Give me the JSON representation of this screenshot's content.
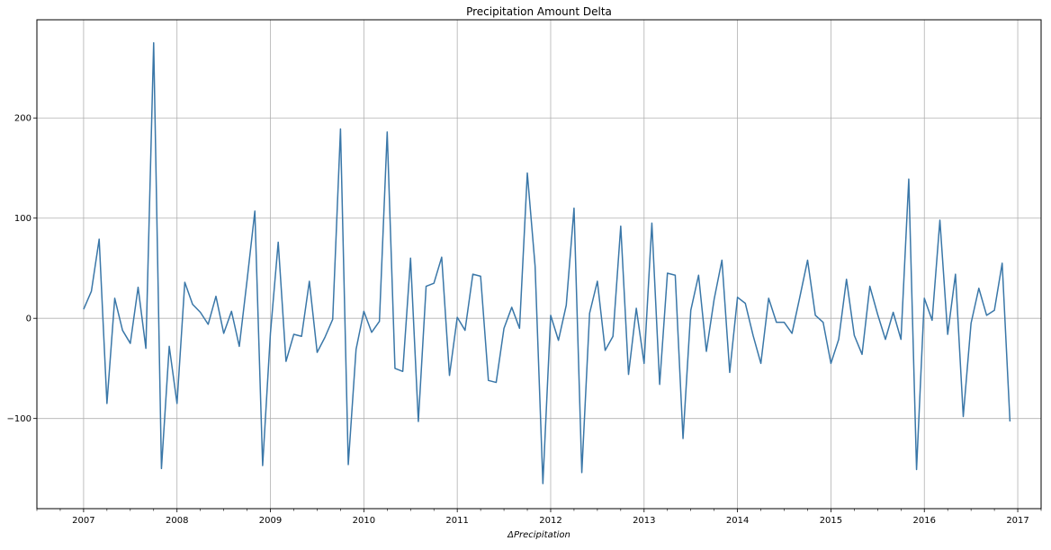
{
  "chart_data": {
    "type": "line",
    "title": "Precipitation Amount Delta",
    "xlabel": "ΔPrecipitation",
    "ylabel": "",
    "grid": true,
    "legend": "none",
    "line_color": "#3a77a8",
    "x_ticks": [
      "2007",
      "2008",
      "2009",
      "2010",
      "2011",
      "2012",
      "2013",
      "2014",
      "2015",
      "2016",
      "2017"
    ],
    "y_ticks": [
      -100,
      0,
      100,
      200
    ],
    "xlim": [
      "2006-07",
      "2017-04"
    ],
    "ylim": [
      -190,
      298
    ],
    "series": [
      {
        "x": [
          "2007-01",
          "2007-02",
          "2007-03",
          "2007-04",
          "2007-05",
          "2007-06",
          "2007-07",
          "2007-08",
          "2007-09",
          "2007-10",
          "2007-11",
          "2007-12",
          "2008-01",
          "2008-02",
          "2008-03",
          "2008-04",
          "2008-05",
          "2008-06",
          "2008-07",
          "2008-08",
          "2008-09",
          "2008-10",
          "2008-11",
          "2008-12",
          "2009-01",
          "2009-02",
          "2009-03",
          "2009-04",
          "2009-05",
          "2009-06",
          "2009-07",
          "2009-08",
          "2009-09",
          "2009-10",
          "2009-11",
          "2009-12",
          "2010-01",
          "2010-02",
          "2010-03",
          "2010-04",
          "2010-05",
          "2010-06",
          "2010-07",
          "2010-08",
          "2010-09",
          "2010-10",
          "2010-11",
          "2010-12",
          "2011-01",
          "2011-02",
          "2011-03",
          "2011-04",
          "2011-05",
          "2011-06",
          "2011-07",
          "2011-08",
          "2011-09",
          "2011-10",
          "2011-11",
          "2011-12",
          "2012-01",
          "2012-02",
          "2012-03",
          "2012-04",
          "2012-05",
          "2012-06",
          "2012-07",
          "2012-08",
          "2012-09",
          "2012-10",
          "2012-11",
          "2012-12",
          "2013-01",
          "2013-02",
          "2013-03",
          "2013-04",
          "2013-05",
          "2013-06",
          "2013-07",
          "2013-08",
          "2013-09",
          "2013-10",
          "2013-11",
          "2013-12",
          "2014-01",
          "2014-02",
          "2014-03",
          "2014-04",
          "2014-05",
          "2014-06",
          "2014-07",
          "2014-08",
          "2014-09",
          "2014-10",
          "2014-11",
          "2014-12",
          "2015-01",
          "2015-02",
          "2015-03",
          "2015-04",
          "2015-05",
          "2015-06",
          "2015-07",
          "2015-08",
          "2015-09",
          "2015-10",
          "2015-11",
          "2015-12",
          "2016-01",
          "2016-02",
          "2016-03",
          "2016-04",
          "2016-05",
          "2016-06",
          "2016-07",
          "2016-08",
          "2016-09",
          "2016-10",
          "2016-11",
          "2016-12"
        ],
        "values": [
          9,
          27,
          79,
          -85,
          20,
          -12,
          -25,
          31,
          -30,
          275,
          -150,
          -28,
          -85,
          36,
          14,
          6,
          -6,
          22,
          -15,
          7,
          -28,
          38,
          107,
          -147,
          -15,
          76,
          -43,
          -16,
          -18,
          37,
          -34,
          -19,
          -1,
          189,
          -146,
          -31,
          7,
          -14,
          -3,
          186,
          -50,
          -53,
          60,
          -103,
          32,
          35,
          61,
          -57,
          1,
          -12,
          44,
          42,
          -62,
          -64,
          -10,
          11,
          -10,
          145,
          52,
          -165,
          3,
          -22,
          13,
          110,
          -154,
          5,
          37,
          -32,
          -18,
          92,
          -56,
          10,
          -45,
          95,
          -66,
          45,
          43,
          -120,
          8,
          43,
          -33,
          19,
          58,
          -54,
          21,
          15,
          -17,
          -45,
          20,
          -4,
          -4,
          -15,
          21,
          58,
          3,
          -4,
          -45,
          -21,
          39,
          -17,
          -36,
          32,
          4,
          -21,
          6,
          -21,
          139,
          -151,
          20,
          -2,
          98,
          -16,
          44,
          -98,
          -5,
          30,
          3,
          8,
          55,
          -103
        ]
      }
    ]
  }
}
